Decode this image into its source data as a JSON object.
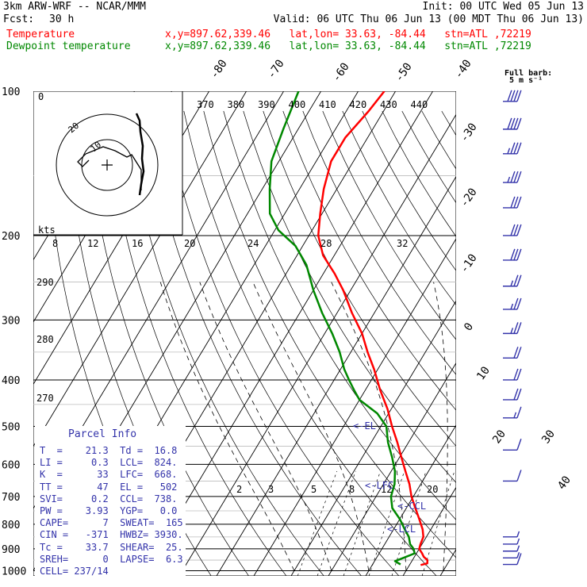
{
  "header": {
    "line1_left": "3km ARW-WRF -- NCAR/MMM",
    "line1_right": "Init: 00 UTC Wed 05 Jun 13",
    "line2_fcst_label": "Fcst:",
    "line2_fcst_value": "30 h",
    "line2_valid": "Valid: 06 UTC Thu 06 Jun 13 (00 MDT Thu 06 Jun 13)",
    "temp_label": "Temperature",
    "temp_info": "x,y=897.62,339.46   lat,lon= 33.63, -84.44   stn=ATL ,72219",
    "dew_label": "Dewpoint temperature",
    "dew_info": "x,y=897.62,339.46   lat,lon= 33.63, -84.44   stn=ATL ,72219"
  },
  "colors": {
    "temperature": "#ff0000",
    "dewpoint": "#008800",
    "info_text": "#3333aa",
    "barbs": "#3333aa"
  },
  "chart_data": {
    "type": "line",
    "pressure_ticks": [
      100,
      200,
      300,
      400,
      500,
      600,
      700,
      800,
      900,
      1000
    ],
    "isotherm_labels": [
      "-80",
      "-70",
      "-60",
      "-50",
      "-40",
      "-30",
      "-20",
      "-10",
      "0",
      "10",
      "20",
      "30",
      "40"
    ],
    "mixing_ratio_labels": [
      "2",
      "3",
      "5",
      "8",
      "12",
      "20"
    ],
    "theta_e_labels": [
      "370",
      "380",
      "390",
      "400",
      "410",
      "420",
      "430",
      "440"
    ],
    "dry_adiabat_labels": [
      "290",
      "280",
      "270"
    ],
    "hodograph": {
      "kts_label": "kts",
      "rings": [
        "10",
        "20"
      ],
      "speed_scale": [
        "8",
        "12",
        "16",
        "20",
        "24",
        "28",
        "32"
      ]
    },
    "barb_legend": {
      "line1": "Full barb:",
      "line2": "5 m s⁻¹"
    },
    "level_markers": [
      "<-EL",
      "<-LFC",
      "<-CCL",
      "<-LCL"
    ],
    "series": [
      {
        "name": "Temperature",
        "points": [
          [
            973,
            23.0
          ],
          [
            965,
            24.5
          ],
          [
            950,
            24.0
          ],
          [
            935,
            22.5
          ],
          [
            920,
            21.5
          ],
          [
            900,
            20.0
          ],
          [
            880,
            19.6
          ],
          [
            850,
            19.2
          ],
          [
            820,
            17.8
          ],
          [
            780,
            15.2
          ],
          [
            740,
            12.4
          ],
          [
            700,
            9.5
          ],
          [
            660,
            7.0
          ],
          [
            620,
            3.8
          ],
          [
            580,
            0.5
          ],
          [
            540,
            -3.0
          ],
          [
            500,
            -7.0
          ],
          [
            460,
            -11.0
          ],
          [
            420,
            -16.0
          ],
          [
            380,
            -21.0
          ],
          [
            350,
            -25.5
          ],
          [
            320,
            -30.0
          ],
          [
            290,
            -36.0
          ],
          [
            260,
            -42.0
          ],
          [
            240,
            -47.0
          ],
          [
            220,
            -53.0
          ],
          [
            200,
            -57.5
          ],
          [
            180,
            -60.5
          ],
          [
            160,
            -63.5
          ],
          [
            140,
            -66.0
          ],
          [
            125,
            -66.0
          ],
          [
            110,
            -64.0
          ],
          [
            100,
            -63.0
          ]
        ]
      },
      {
        "name": "Dewpoint temperature",
        "points": [
          [
            970,
            17.5
          ],
          [
            955,
            15.5
          ],
          [
            940,
            17.2
          ],
          [
            920,
            19.5
          ],
          [
            900,
            18.5
          ],
          [
            880,
            16.8
          ],
          [
            850,
            15.3
          ],
          [
            820,
            13.0
          ],
          [
            780,
            10.0
          ],
          [
            740,
            6.2
          ],
          [
            700,
            4.0
          ],
          [
            660,
            3.0
          ],
          [
            620,
            1.0
          ],
          [
            580,
            -2.0
          ],
          [
            540,
            -5.5
          ],
          [
            500,
            -8.5
          ],
          [
            470,
            -13.0
          ],
          [
            440,
            -20.0
          ],
          [
            420,
            -23.0
          ],
          [
            400,
            -26.0
          ],
          [
            380,
            -29.0
          ],
          [
            350,
            -33.0
          ],
          [
            320,
            -38.0
          ],
          [
            290,
            -44.0
          ],
          [
            260,
            -50.0
          ],
          [
            230,
            -56.0
          ],
          [
            210,
            -62.0
          ],
          [
            195,
            -69.0
          ],
          [
            180,
            -74.0
          ],
          [
            160,
            -78.0
          ],
          [
            140,
            -82.0
          ],
          [
            120,
            -84.0
          ],
          [
            100,
            -86.0
          ]
        ]
      }
    ],
    "wind_barbs": [
      {
        "p": 105,
        "spd": 40
      },
      {
        "p": 120,
        "spd": 40
      },
      {
        "p": 135,
        "spd": 35
      },
      {
        "p": 155,
        "spd": 35
      },
      {
        "p": 175,
        "spd": 30
      },
      {
        "p": 200,
        "spd": 30
      },
      {
        "p": 225,
        "spd": 30
      },
      {
        "p": 255,
        "spd": 25
      },
      {
        "p": 285,
        "spd": 25
      },
      {
        "p": 320,
        "spd": 25
      },
      {
        "p": 360,
        "spd": 20
      },
      {
        "p": 400,
        "spd": 20
      },
      {
        "p": 440,
        "spd": 20
      },
      {
        "p": 480,
        "spd": 15
      },
      {
        "p": 560,
        "spd": 10
      },
      {
        "p": 650,
        "spd": 10
      },
      {
        "p": 850,
        "spd": 5
      },
      {
        "p": 880,
        "spd": 5
      },
      {
        "p": 910,
        "spd": 5
      },
      {
        "p": 940,
        "spd": 5
      },
      {
        "p": 970,
        "spd": 10
      }
    ]
  },
  "parcel_info": {
    "title": "Parcel Info",
    "rows": [
      "T  =    21.3  Td =  16.8",
      "LI =     0.3  LCL=  824.",
      "K  =      33  LFC=  668.",
      "TT =      47  EL =   502",
      "SVI=     0.2  CCL=  738.",
      "PW =    3.93  YGP=   0.0",
      "CAPE=      7  SWEAT=  165",
      "CIN =   -371  HWBZ= 3930.",
      "Tc =    33.7  SHEAR=  25.",
      "SREH=      0  LAPSE=  6.3",
      "CELL= 237/14"
    ]
  }
}
